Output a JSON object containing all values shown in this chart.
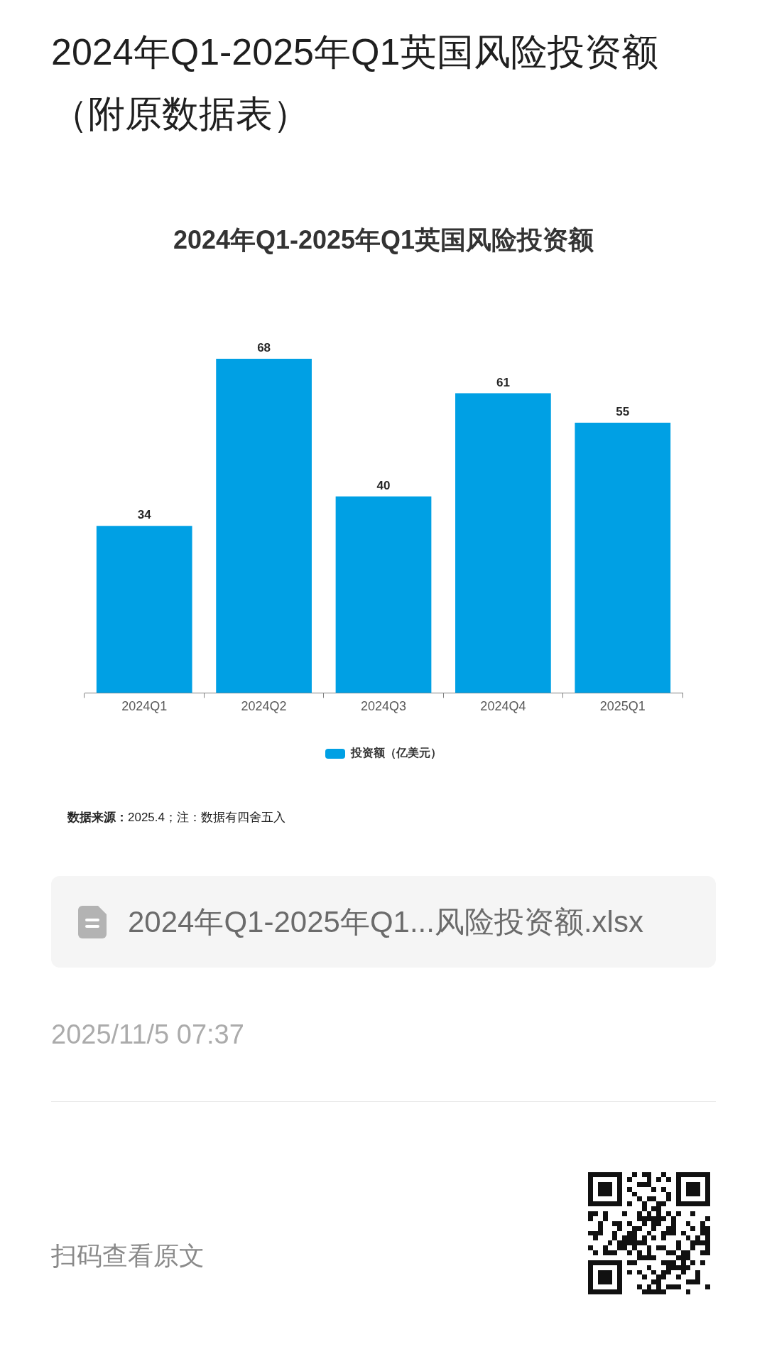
{
  "chart_data": {
    "type": "bar",
    "title": "2024年Q1-2025年Q1英国风险投资额（附原数据表）",
    "subtitle": "2024年Q1-2025年Q1英国风险投资额",
    "categories": [
      "2024Q1",
      "2024Q2",
      "2024Q3",
      "2024Q4",
      "2025Q1"
    ],
    "series": [
      {
        "name": "投资额（亿美元）",
        "color": "#00a0e4",
        "values": [
          34,
          68,
          40,
          61,
          55
        ]
      }
    ],
    "data_labels": true,
    "legend": "bottom",
    "annotations": [
      "数据来源：2025.4；注：数据有四舍五入",
      "2024年Q1-2025年Q1...风险投资额.xlsx",
      "2025/11/5 07:37",
      "扫码查看原文"
    ]
  }
}
